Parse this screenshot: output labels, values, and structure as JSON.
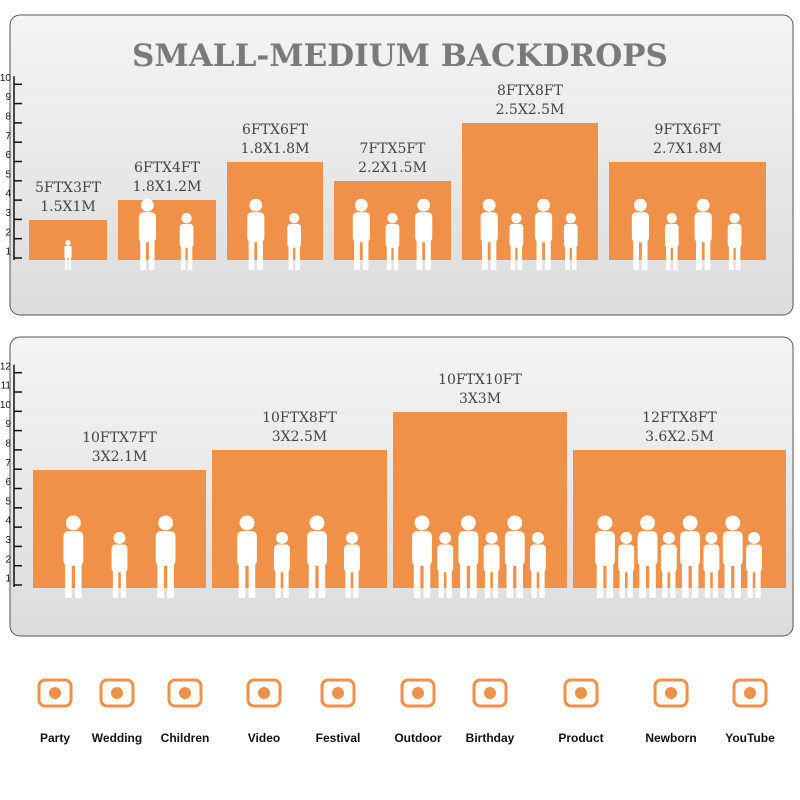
{
  "title": "SMALL-MEDIUM BACKDROPS",
  "panels": [
    {
      "ruler": [
        1,
        2,
        3,
        4,
        5,
        6,
        7,
        8,
        9,
        10
      ],
      "backdrops": [
        {
          "size_ft": "5FTX3FT",
          "size_m": "1.5X1M"
        },
        {
          "size_ft": "6FTX4FT",
          "size_m": "1.8X1.2M"
        },
        {
          "size_ft": "6FTX6FT",
          "size_m": "1.8X1.8M"
        },
        {
          "size_ft": "7FTX5FT",
          "size_m": "2.2X1.5M"
        },
        {
          "size_ft": "8FTX8FT",
          "size_m": "2.5X2.5M"
        },
        {
          "size_ft": "9FTX6FT",
          "size_m": "2.7X1.8M"
        }
      ]
    },
    {
      "ruler": [
        1,
        2,
        3,
        4,
        5,
        6,
        7,
        8,
        9,
        10,
        11,
        12
      ],
      "backdrops": [
        {
          "size_ft": "10FTX7FT",
          "size_m": "3X2.1M"
        },
        {
          "size_ft": "10FTX8FT",
          "size_m": "3X2.5M"
        },
        {
          "size_ft": "10FTX10FT",
          "size_m": "3X3M"
        },
        {
          "size_ft": "12FTX8FT",
          "size_m": "3.6X2.5M"
        }
      ]
    }
  ],
  "uses": [
    "Party",
    "Wedding",
    "Children",
    "Video",
    "Festival",
    "Outdoor",
    "Birthday",
    "Product",
    "Newborn",
    "YouTube"
  ]
}
